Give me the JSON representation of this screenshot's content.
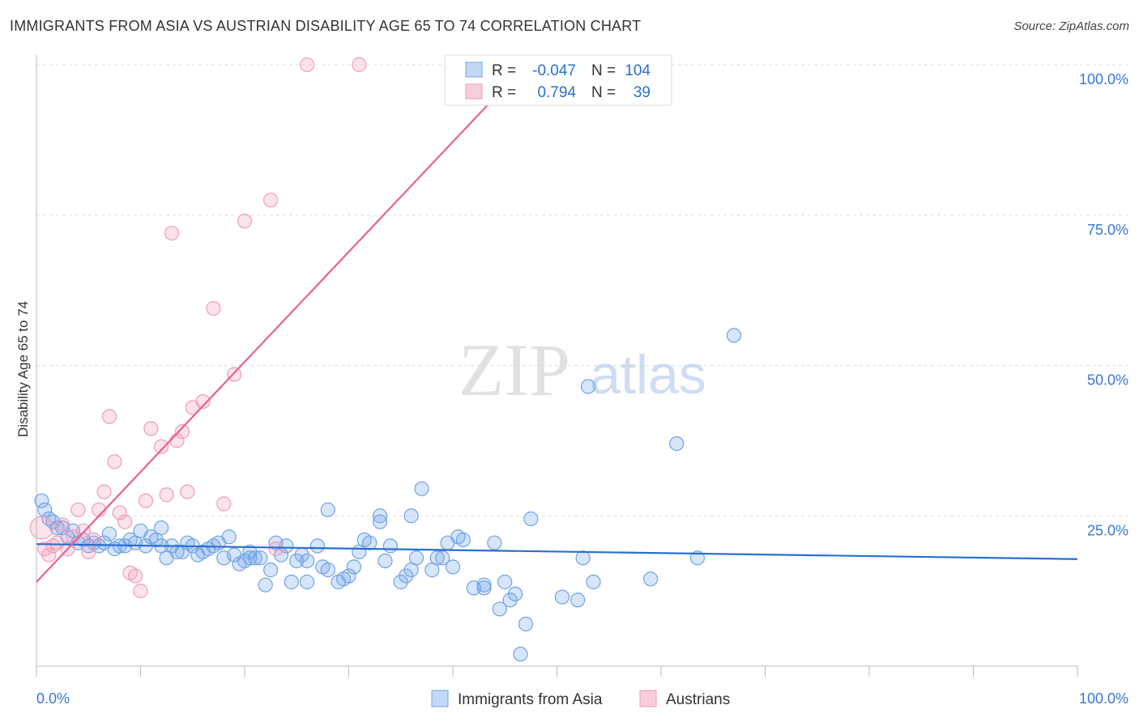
{
  "title": "IMMIGRANTS FROM ASIA VS AUSTRIAN DISABILITY AGE 65 TO 74 CORRELATION CHART",
  "source": "Source: ZipAtlas.com",
  "watermark": {
    "zip": "ZIP",
    "atlas": "atlas"
  },
  "legend_box": {
    "rows": [
      {
        "r_label": "R =",
        "r_value": "-0.047",
        "n_label": "N =",
        "n_value": "104",
        "color": "#6fa3e8"
      },
      {
        "r_label": "R =",
        "r_value": "0.794",
        "n_label": "N =",
        "n_value": "39",
        "color": "#f29bb8"
      }
    ]
  },
  "chart_data": {
    "type": "scatter",
    "xlabel": "",
    "ylabel": "Disability Age 65 to 74",
    "xlim": [
      0,
      100
    ],
    "ylim": [
      0,
      100
    ],
    "x_tick_labels": [
      "0.0%",
      "100.0%"
    ],
    "y_tick_labels": [
      "25.0%",
      "50.0%",
      "75.0%",
      "100.0%"
    ],
    "y_tick_values": [
      25,
      50,
      75,
      100
    ],
    "grid": true,
    "legend_position": "bottom",
    "series": [
      {
        "name": "Immigrants from Asia",
        "color": "#6fa3e8",
        "line_color": "#2a6fcf",
        "trend": {
          "x": [
            0,
            100
          ],
          "y": [
            20.3,
            17.8
          ]
        },
        "points": [
          [
            0.5,
            27.5
          ],
          [
            0.8,
            26.0
          ],
          [
            1.2,
            24.5
          ],
          [
            1.6,
            24.0
          ],
          [
            2.0,
            23.0
          ],
          [
            2.5,
            23.0
          ],
          [
            3.0,
            21.5
          ],
          [
            3.5,
            22.5
          ],
          [
            4.0,
            20.5
          ],
          [
            4.5,
            21.0
          ],
          [
            5.0,
            20.0
          ],
          [
            5.5,
            20.5
          ],
          [
            6.0,
            20.0
          ],
          [
            6.5,
            20.5
          ],
          [
            7.0,
            22.0
          ],
          [
            7.5,
            19.5
          ],
          [
            8.0,
            20.0
          ],
          [
            8.5,
            20.0
          ],
          [
            9.0,
            21.0
          ],
          [
            9.5,
            20.5
          ],
          [
            10.0,
            22.5
          ],
          [
            10.5,
            20.0
          ],
          [
            11.0,
            21.5
          ],
          [
            11.5,
            21.0
          ],
          [
            12.0,
            20.0
          ],
          [
            12.5,
            18.0
          ],
          [
            13.0,
            20.0
          ],
          [
            13.5,
            19.0
          ],
          [
            14.0,
            19.0
          ],
          [
            14.5,
            20.5
          ],
          [
            15.0,
            20.0
          ],
          [
            15.5,
            18.5
          ],
          [
            16.0,
            19.0
          ],
          [
            16.5,
            19.5
          ],
          [
            17.0,
            20.0
          ],
          [
            17.5,
            20.5
          ],
          [
            18.0,
            18.0
          ],
          [
            18.5,
            21.5
          ],
          [
            19.0,
            18.5
          ],
          [
            19.5,
            17.0
          ],
          [
            20.0,
            17.5
          ],
          [
            20.5,
            18.0
          ],
          [
            21.0,
            18.0
          ],
          [
            21.5,
            18.0
          ],
          [
            22.0,
            13.5
          ],
          [
            22.5,
            16.0
          ],
          [
            23.0,
            20.5
          ],
          [
            23.5,
            18.5
          ],
          [
            24.0,
            20.0
          ],
          [
            24.5,
            14.0
          ],
          [
            25.0,
            17.5
          ],
          [
            25.5,
            18.5
          ],
          [
            26.0,
            14.0
          ],
          [
            27.0,
            20.0
          ],
          [
            27.5,
            16.5
          ],
          [
            28.0,
            16.0
          ],
          [
            29.0,
            14.0
          ],
          [
            29.5,
            14.5
          ],
          [
            30.0,
            15.0
          ],
          [
            30.5,
            16.5
          ],
          [
            31.0,
            19.0
          ],
          [
            31.5,
            21.0
          ],
          [
            32.0,
            20.5
          ],
          [
            33.0,
            24.0
          ],
          [
            33.5,
            17.5
          ],
          [
            34.0,
            20.0
          ],
          [
            35.0,
            14.0
          ],
          [
            35.5,
            15.0
          ],
          [
            36.0,
            16.0
          ],
          [
            36.5,
            18.0
          ],
          [
            37.0,
            29.5
          ],
          [
            38.0,
            16.0
          ],
          [
            38.5,
            18.0
          ],
          [
            39.0,
            18.0
          ],
          [
            40.0,
            16.5
          ],
          [
            40.5,
            21.5
          ],
          [
            41.0,
            21.0
          ],
          [
            42.0,
            13.0
          ],
          [
            43.0,
            13.0
          ],
          [
            44.5,
            9.5
          ],
          [
            45.0,
            14.0
          ],
          [
            45.5,
            11.0
          ],
          [
            46.0,
            12.0
          ],
          [
            47.0,
            7.0
          ],
          [
            46.5,
            2.0
          ],
          [
            47.5,
            24.5
          ],
          [
            50.5,
            11.5
          ],
          [
            52.0,
            11.0
          ],
          [
            52.5,
            18.0
          ],
          [
            53.5,
            14.0
          ],
          [
            53.0,
            46.5
          ],
          [
            59.0,
            14.5
          ],
          [
            61.5,
            37.0
          ],
          [
            63.5,
            18.0
          ],
          [
            67.0,
            55.0
          ],
          [
            43.0,
            13.5
          ],
          [
            28.0,
            26.0
          ],
          [
            33.0,
            25.0
          ],
          [
            44.0,
            20.5
          ],
          [
            36.0,
            25.0
          ],
          [
            12.0,
            23.0
          ],
          [
            26.0,
            17.5
          ],
          [
            20.5,
            19.0
          ],
          [
            39.5,
            20.5
          ]
        ]
      },
      {
        "name": "Austrians",
        "color": "#f29bb8",
        "line_color": "#e8628f",
        "trend": {
          "x": [
            0,
            47
          ],
          "y": [
            14.0,
            100.0
          ]
        },
        "points": [
          [
            0.5,
            23.0
          ],
          [
            0.8,
            19.5
          ],
          [
            1.2,
            18.5
          ],
          [
            1.6,
            20.0
          ],
          [
            2.0,
            20.5
          ],
          [
            2.5,
            23.5
          ],
          [
            3.0,
            19.5
          ],
          [
            3.5,
            21.5
          ],
          [
            4.0,
            26.0
          ],
          [
            4.5,
            22.5
          ],
          [
            5.0,
            19.0
          ],
          [
            5.5,
            21.0
          ],
          [
            6.0,
            26.0
          ],
          [
            6.5,
            29.0
          ],
          [
            7.0,
            41.5
          ],
          [
            7.5,
            34.0
          ],
          [
            8.0,
            25.5
          ],
          [
            8.5,
            24.0
          ],
          [
            9.0,
            15.5
          ],
          [
            9.5,
            15.0
          ],
          [
            10.0,
            12.5
          ],
          [
            10.5,
            27.5
          ],
          [
            11.0,
            39.5
          ],
          [
            12.0,
            36.5
          ],
          [
            12.5,
            28.5
          ],
          [
            13.0,
            72.0
          ],
          [
            13.5,
            37.5
          ],
          [
            14.0,
            39.0
          ],
          [
            14.5,
            29.0
          ],
          [
            15.0,
            43.0
          ],
          [
            16.0,
            44.0
          ],
          [
            17.0,
            59.5
          ],
          [
            18.0,
            27.0
          ],
          [
            19.0,
            48.5
          ],
          [
            20.0,
            74.0
          ],
          [
            22.5,
            77.5
          ],
          [
            23.0,
            19.5
          ],
          [
            26.0,
            100.0
          ],
          [
            31.0,
            100.0
          ]
        ]
      }
    ]
  }
}
